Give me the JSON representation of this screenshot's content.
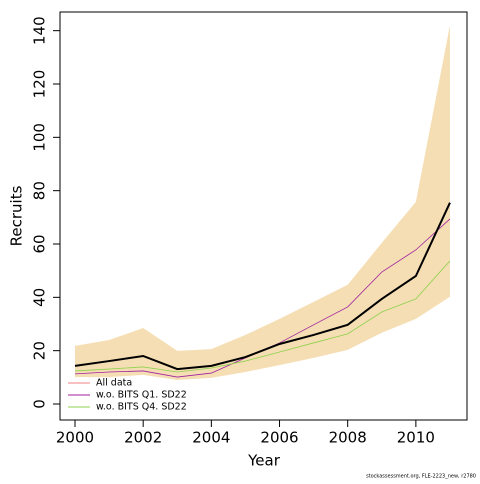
{
  "chart_data": {
    "type": "line",
    "x_label": "Year",
    "y_label": "Recruits",
    "footnote": "stockassessment.org, FLE-2223_new, r2780",
    "x": [
      2000,
      2001,
      2002,
      2003,
      2004,
      2005,
      2006,
      2007,
      2008,
      2009,
      2010,
      2011
    ],
    "xlim": [
      1999.56,
      2011.5
    ],
    "xticks": [
      2000,
      2002,
      2004,
      2006,
      2008,
      2010
    ],
    "ylim": [
      -6,
      147
    ],
    "yticks": [
      0,
      20,
      40,
      60,
      80,
      100,
      120,
      140
    ],
    "band": {
      "color": "#f5deb3",
      "lower": [
        10.1,
        10.1,
        10.9,
        9,
        9.8,
        12,
        14.6,
        17.3,
        20.3,
        26.7,
        31.9,
        40.2
      ],
      "upper": [
        21.8,
        24,
        28.5,
        19.9,
        20.6,
        25.9,
        31.9,
        38.3,
        44.7,
        60.4,
        75.8,
        142
      ]
    },
    "series": [
      {
        "name": "All data",
        "color": "#f08080",
        "line_color": "#000000",
        "line_width": 2,
        "values": [
          14.3,
          16.1,
          18,
          13.1,
          14.3,
          17.6,
          22.5,
          25.9,
          29.7,
          39.4,
          48,
          75.5
        ]
      },
      {
        "name": "w.o. BITS Q1. SD22",
        "color": "#a020a0",
        "line_color": "#a020a0",
        "line_width": 0.8,
        "values": [
          11.3,
          12,
          12.4,
          10.1,
          11.6,
          17.3,
          22.9,
          29.7,
          36.4,
          49.5,
          57.8,
          69.4
        ]
      },
      {
        "name": "w.o. BITS Q4. SD22",
        "color": "#8fd14f",
        "line_color": "#8fd14f",
        "line_width": 0.8,
        "values": [
          12.4,
          13.1,
          13.9,
          12,
          13.5,
          16.1,
          19.5,
          22.9,
          26.3,
          34.5,
          39.4,
          53.7
        ]
      }
    ],
    "legend": "bottom-left"
  }
}
